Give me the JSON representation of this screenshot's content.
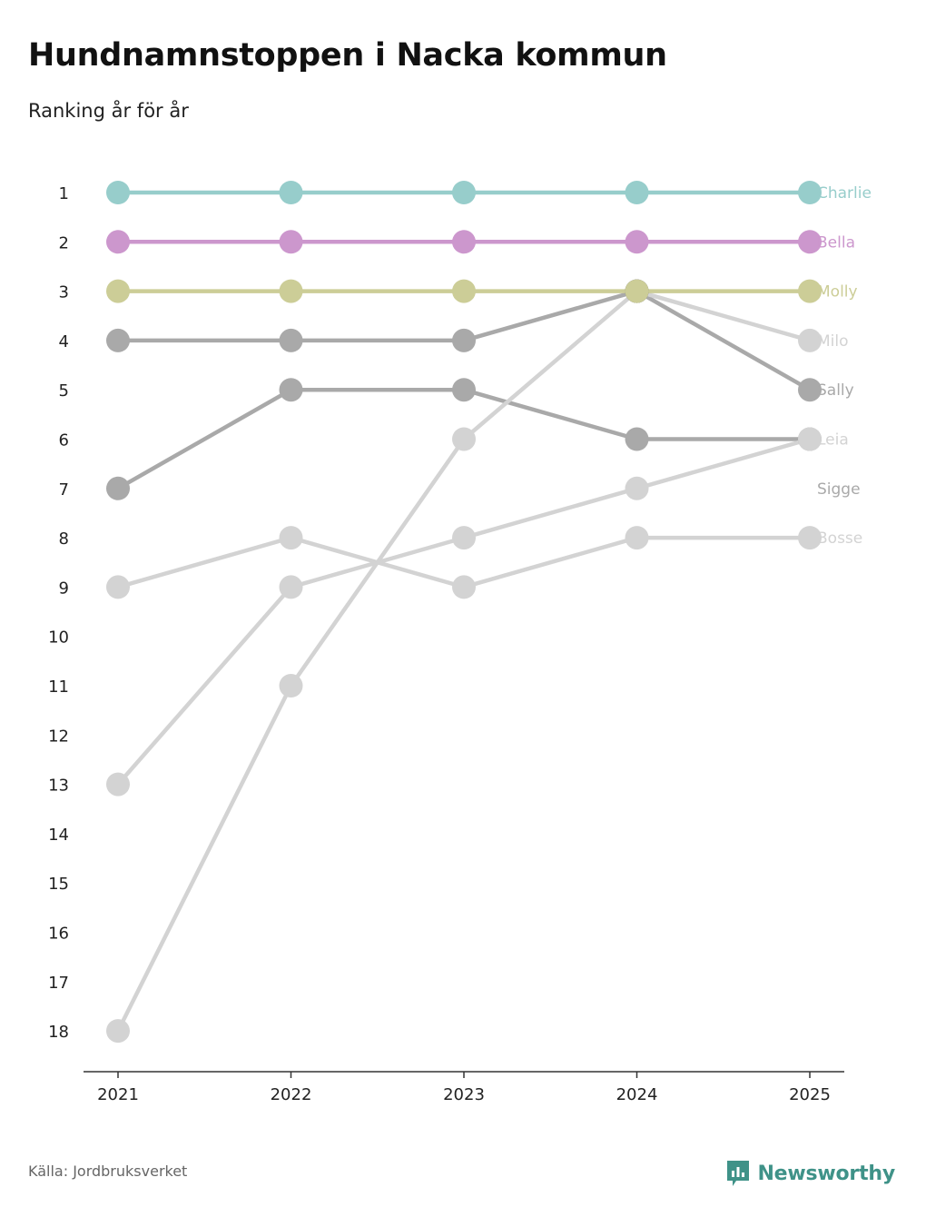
{
  "title": "Hundnamnstoppen i Nacka kommun",
  "subtitle": "Ranking år för år",
  "source": "Källa: Jordbruksverket",
  "brand": "Newsworthy",
  "brand_color": "#3f9288",
  "chart_data": {
    "type": "line",
    "title": "Hundnamnstoppen i Nacka kommun",
    "subtitle": "Ranking år för år",
    "xlabel": "",
    "ylabel": "",
    "x": [
      "2021",
      "2022",
      "2023",
      "2024",
      "2025"
    ],
    "ylim": [
      1,
      18
    ],
    "y_reversed": true,
    "y_ticks": [
      "1",
      "2",
      "3",
      "4",
      "5",
      "6",
      "7",
      "8",
      "9",
      "10",
      "11",
      "12",
      "13",
      "14",
      "15",
      "16",
      "17",
      "18"
    ],
    "series": [
      {
        "name": "Charlie",
        "color": "#97cdcb",
        "values": [
          1,
          1,
          1,
          1,
          1
        ]
      },
      {
        "name": "Bella",
        "color": "#cc97cd",
        "values": [
          2,
          2,
          2,
          2,
          2
        ]
      },
      {
        "name": "Molly",
        "color": "#cccd97",
        "values": [
          3,
          3,
          3,
          3,
          3
        ]
      },
      {
        "name": "Milo",
        "color": "#d3d3d3",
        "values": [
          18,
          11,
          6,
          3,
          4
        ]
      },
      {
        "name": "Sally",
        "color": "#a9a9a9",
        "values": [
          4,
          4,
          4,
          3,
          5
        ]
      },
      {
        "name": "Leia",
        "color": "#d3d3d3",
        "values": [
          13,
          9,
          8,
          7,
          6
        ]
      },
      {
        "name": "Sigge",
        "color": "#a9a9a9",
        "values": [
          7,
          5,
          5,
          6,
          6
        ]
      },
      {
        "name": "Bosse",
        "color": "#d3d3d3",
        "values": [
          9,
          8,
          9,
          8,
          8
        ]
      }
    ],
    "overlap_point_color": "#6e6e73",
    "grid": false,
    "legend": "right-end labels"
  }
}
